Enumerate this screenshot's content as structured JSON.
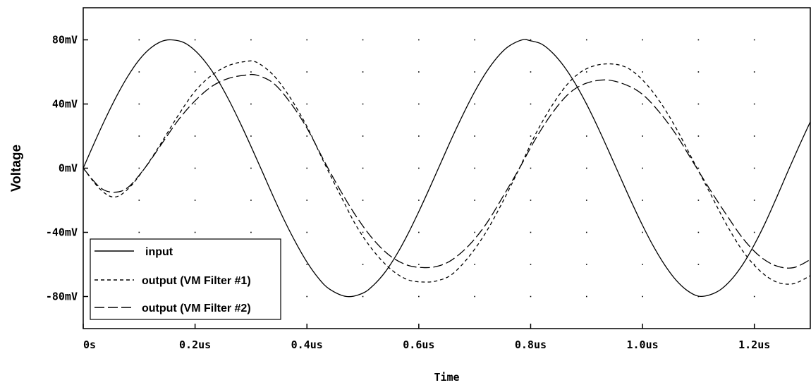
{
  "chart_data": {
    "type": "line",
    "xlabel": "Time",
    "ylabel": "Voltage",
    "xlim": [
      0,
      1.3
    ],
    "ylim": [
      -100,
      100
    ],
    "x_unit": "us",
    "y_unit": "mV",
    "x_ticks": [
      0,
      0.2,
      0.4,
      0.6,
      0.8,
      1.0,
      1.2
    ],
    "x_tick_labels": [
      "0s",
      "0.2us",
      "0.4us",
      "0.6us",
      "0.8us",
      "1.0us",
      "1.2us"
    ],
    "y_ticks": [
      80,
      40,
      0,
      -40,
      -80
    ],
    "y_tick_labels": [
      "80mV",
      "40mV",
      "0mV",
      "-40mV",
      "-80mV"
    ],
    "grid": "dotted",
    "legend_position": "bottom-left",
    "series": [
      {
        "name": "input",
        "style": "solid",
        "x": [
          0,
          0.02,
          0.04,
          0.06,
          0.08,
          0.1,
          0.12,
          0.14,
          0.157,
          0.18,
          0.2,
          0.22,
          0.24,
          0.26,
          0.28,
          0.3,
          0.32,
          0.34,
          0.36,
          0.38,
          0.4,
          0.42,
          0.44,
          0.471,
          0.5,
          0.52,
          0.54,
          0.56,
          0.58,
          0.6,
          0.62,
          0.64,
          0.66,
          0.68,
          0.7,
          0.72,
          0.74,
          0.76,
          0.785,
          0.8,
          0.82,
          0.84,
          0.86,
          0.88,
          0.9,
          0.92,
          0.94,
          0.96,
          0.98,
          1.0,
          1.02,
          1.04,
          1.06,
          1.08,
          1.1,
          1.12,
          1.14,
          1.16,
          1.18,
          1.2,
          1.22,
          1.24,
          1.26,
          1.28,
          1.3
        ],
        "y": [
          0,
          15.9,
          31.1,
          45.1,
          57.4,
          67.5,
          74.7,
          79.0,
          80.0,
          78.3,
          73.3,
          65.5,
          55.3,
          42.8,
          28.7,
          13.6,
          -2.0,
          -17.8,
          -32.8,
          -46.4,
          -58.5,
          -68.3,
          -75.3,
          -80.0,
          -77.9,
          -72.6,
          -64.7,
          -54.1,
          -41.4,
          -27.1,
          -11.9,
          3.8,
          19.4,
          34.1,
          47.7,
          59.5,
          69.0,
          75.8,
          80.0,
          79.4,
          77.3,
          71.6,
          63.3,
          52.6,
          39.9,
          25.6,
          10.3,
          -5.4,
          -20.9,
          -35.6,
          -49.0,
          -60.5,
          -69.8,
          -76.3,
          -79.8,
          -79.0,
          -75.6,
          -69.0,
          -59.6,
          -47.6,
          -33.7,
          -18.1,
          -1.9,
          13.8,
          28.9
        ]
      },
      {
        "name": "output (VM Filter #1)",
        "style": "short-dash",
        "x": [
          0,
          0.03,
          0.055,
          0.08,
          0.11,
          0.14,
          0.17,
          0.2,
          0.23,
          0.26,
          0.29,
          0.31,
          0.34,
          0.37,
          0.4,
          0.43,
          0.46,
          0.49,
          0.52,
          0.55,
          0.58,
          0.61,
          0.635,
          0.66,
          0.69,
          0.72,
          0.75,
          0.78,
          0.81,
          0.84,
          0.87,
          0.9,
          0.935,
          0.97,
          1.0,
          1.03,
          1.06,
          1.09,
          1.12,
          1.15,
          1.18,
          1.21,
          1.24,
          1.27,
          1.3
        ],
        "y": [
          0,
          -13,
          -18,
          -13,
          0,
          16,
          33,
          48,
          58,
          64,
          66.5,
          66,
          58,
          44,
          26,
          4,
          -17,
          -37,
          -52,
          -63,
          -69.5,
          -71,
          -70,
          -66,
          -55,
          -40,
          -21,
          0,
          22,
          40,
          54,
          62,
          65,
          63,
          55,
          42,
          25,
          5,
          -15,
          -35,
          -52,
          -64,
          -71,
          -72,
          -67
        ]
      },
      {
        "name": "output (VM Filter #2)",
        "style": "long-dash",
        "x": [
          0,
          0.03,
          0.055,
          0.08,
          0.11,
          0.14,
          0.17,
          0.2,
          0.23,
          0.26,
          0.29,
          0.31,
          0.34,
          0.37,
          0.4,
          0.43,
          0.46,
          0.49,
          0.52,
          0.55,
          0.58,
          0.61,
          0.635,
          0.66,
          0.69,
          0.72,
          0.75,
          0.78,
          0.81,
          0.84,
          0.87,
          0.9,
          0.935,
          0.97,
          1.0,
          1.03,
          1.06,
          1.09,
          1.12,
          1.15,
          1.18,
          1.21,
          1.24,
          1.27,
          1.3
        ],
        "y": [
          0,
          -12,
          -15,
          -12,
          0,
          15,
          30,
          42,
          51,
          56,
          58,
          58,
          53,
          41,
          25,
          5,
          -14,
          -31,
          -45,
          -55,
          -60.5,
          -62,
          -61,
          -57,
          -48,
          -35,
          -18,
          0,
          19,
          35,
          47,
          53,
          55,
          52,
          46,
          35,
          21,
          4,
          -13,
          -29,
          -44,
          -55,
          -61,
          -62,
          -57
        ]
      }
    ]
  }
}
